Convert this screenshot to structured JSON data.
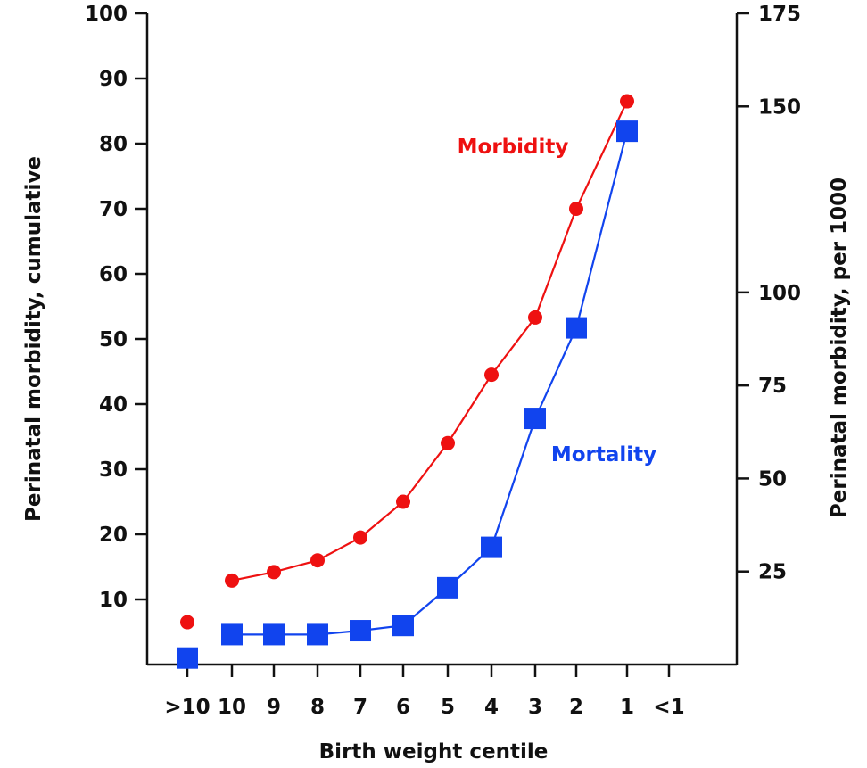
{
  "chart_data": {
    "type": "line",
    "xlabel": "Birth weight centile",
    "ylabel_left": "Perinatal morbidity, cumulative",
    "ylabel_right": "Perinatal morbidity, per 1000",
    "categories": [
      ">10",
      "10",
      "9",
      "8",
      "7",
      "6",
      "5",
      "4",
      "3",
      "2",
      "1",
      "<1"
    ],
    "left_axis": {
      "ylim": [
        0,
        100
      ],
      "ticks": [
        10,
        20,
        30,
        40,
        50,
        60,
        70,
        80,
        90,
        100
      ]
    },
    "right_axis": {
      "ylim": [
        0,
        175
      ],
      "ticks": [
        25,
        50,
        75,
        100,
        150,
        175
      ]
    },
    "series": [
      {
        "name": "Morbidity",
        "color": "#ee1111",
        "marker": "circle",
        "axis": "left",
        "values": [
          6.5,
          12.9,
          14.2,
          16.0,
          19.5,
          25.0,
          34.0,
          44.5,
          53.3,
          70.0,
          86.5,
          null
        ],
        "connected_from_index": 1
      },
      {
        "name": "Mortality",
        "color": "#1144ee",
        "marker": "square",
        "axis": "left",
        "values": [
          1.0,
          4.6,
          4.6,
          4.6,
          5.2,
          6.0,
          11.8,
          18.0,
          37.8,
          51.7,
          81.9,
          null
        ],
        "connected_from_index": 1
      }
    ],
    "grid": false,
    "legend": "inline labels"
  }
}
